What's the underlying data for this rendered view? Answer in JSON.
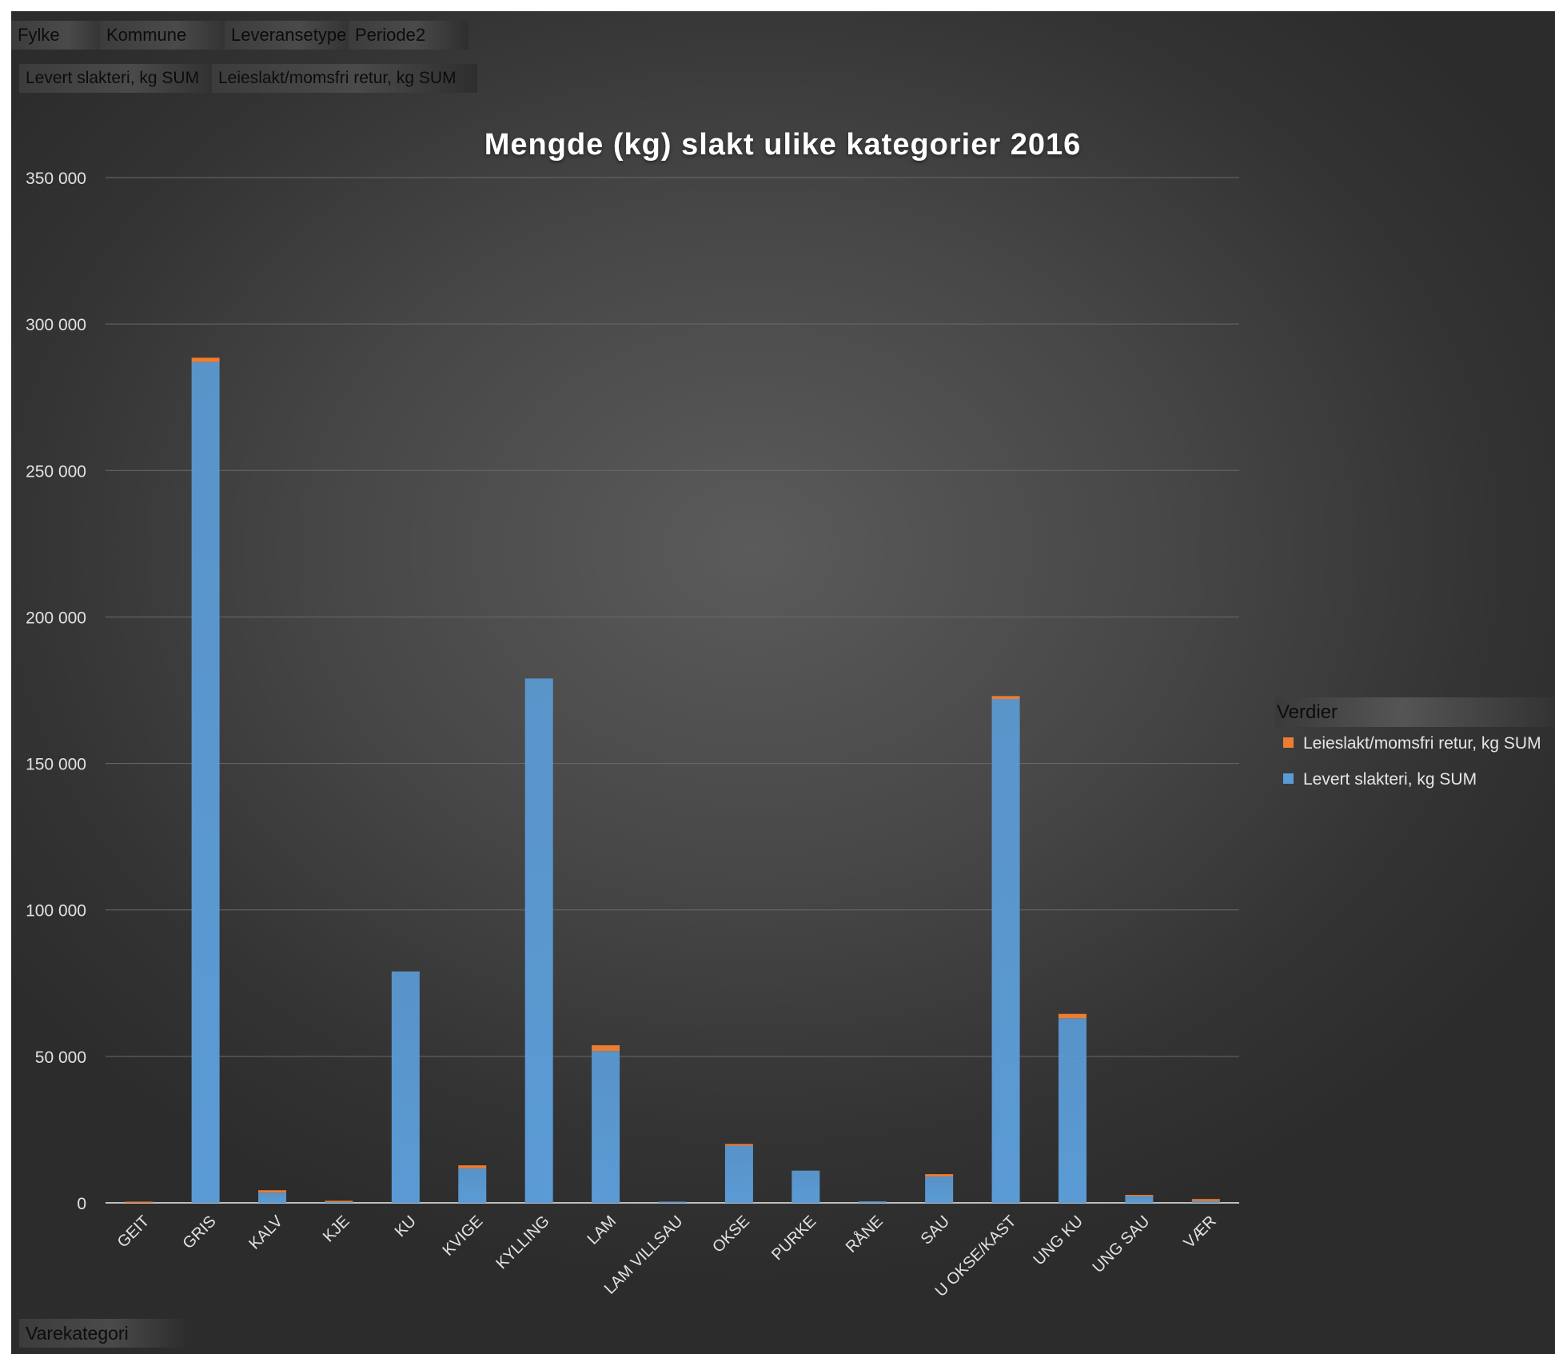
{
  "filters": {
    "fylke": "Fylke",
    "kommune": "Kommune",
    "leveransetype": "Leveransetype",
    "periode": "Periode2"
  },
  "value_fields": {
    "levert": "Levert slakteri, kg SUM",
    "leieslakt": "Leieslakt/momsfri retur, kg SUM"
  },
  "axis_field": "Varekategori",
  "legend": {
    "title": "Verdier",
    "items": [
      {
        "label": "Leieslakt/momsfri retur, kg SUM",
        "color": "#ed7d31"
      },
      {
        "label": "Levert slakteri, kg SUM",
        "color": "#5b9bd5"
      }
    ]
  },
  "chart_data": {
    "type": "bar",
    "stacked": true,
    "title": "Mengde (kg) slakt ulike kategorier 2016",
    "xlabel": "",
    "ylabel": "",
    "ylim": [
      0,
      350000
    ],
    "yticks": [
      0,
      50000,
      100000,
      150000,
      200000,
      250000,
      300000,
      350000
    ],
    "ytick_labels": [
      "0",
      "50 000",
      "100 000",
      "150 000",
      "200 000",
      "250 000",
      "300 000",
      "350 000"
    ],
    "grid": true,
    "legend_position": "right",
    "categories": [
      "GEIT",
      "GRIS",
      "KALV",
      "KJE",
      "KU",
      "KVIGE",
      "KYLLING",
      "LAM",
      "LAM VILLSAU",
      "OKSE",
      "PURKE",
      "RÅNE",
      "SAU",
      "U OKSE/KAST",
      "UNG KU",
      "UNG SAU",
      "VÆR"
    ],
    "series": [
      {
        "name": "Levert slakteri, kg SUM",
        "color": "#5b9bd5",
        "values": [
          0,
          287000,
          3500,
          300,
          79000,
          11800,
          179000,
          51800,
          200,
          19500,
          11000,
          500,
          9000,
          172000,
          63000,
          2300,
          600
        ]
      },
      {
        "name": "Leieslakt/momsfri retur, kg SUM",
        "color": "#ed7d31",
        "values": [
          300,
          1500,
          800,
          300,
          0,
          1000,
          0,
          2000,
          0,
          600,
          0,
          0,
          800,
          1000,
          1500,
          200,
          700
        ]
      }
    ]
  }
}
